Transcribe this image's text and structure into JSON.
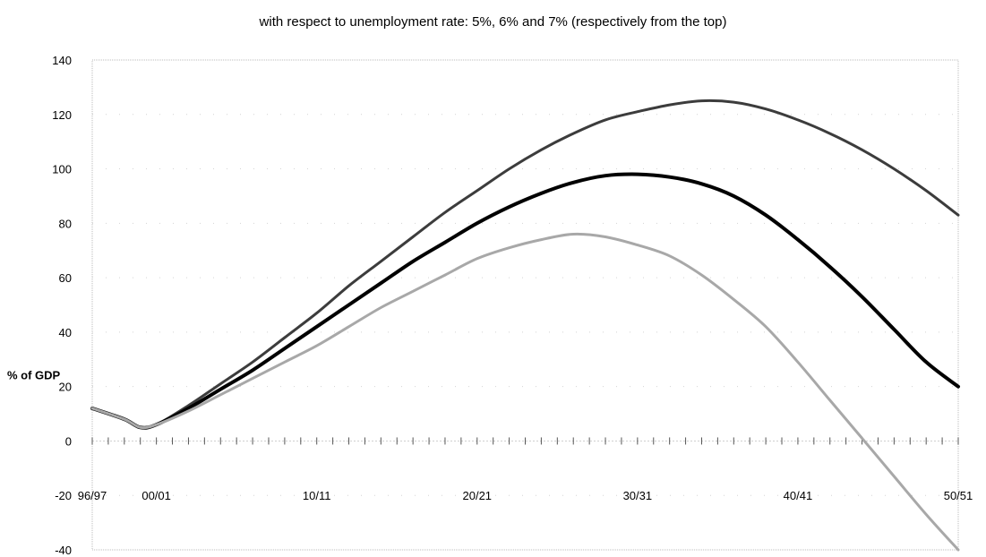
{
  "chart_data": {
    "type": "line",
    "title": "with respect to unemployment rate: 5%, 6% and 7% (respectively from the top)",
    "ylabel": "% of GDP",
    "xlabel": "",
    "ylim": [
      -40,
      140
    ],
    "yticks": [
      -40,
      -20,
      0,
      20,
      40,
      60,
      80,
      100,
      120,
      140
    ],
    "xticks": [
      "96/97",
      "00/01",
      "10/11",
      "20/21",
      "30/31",
      "40/41",
      "50/51"
    ],
    "xtick_years": [
      1996,
      2000,
      2010,
      2020,
      2030,
      2040,
      2050
    ],
    "x": [
      1996,
      1998,
      1999,
      2000,
      2002,
      2004,
      2006,
      2008,
      2010,
      2012,
      2014,
      2016,
      2018,
      2020,
      2022,
      2024,
      2026,
      2028,
      2030,
      2032,
      2034,
      2036,
      2038,
      2040,
      2042,
      2044,
      2046,
      2048,
      2050
    ],
    "series": [
      {
        "name": "5%",
        "color": "#3c3c3c",
        "width": 3,
        "values": [
          12,
          8,
          5,
          6,
          13,
          21,
          29,
          38,
          47,
          57,
          66,
          75,
          84,
          92,
          100,
          107,
          113,
          118,
          121,
          123.5,
          125,
          124.5,
          122,
          118,
          113,
          107,
          100,
          92,
          83
        ]
      },
      {
        "name": "6%",
        "color": "#000000",
        "width": 4,
        "values": [
          12,
          8,
          5,
          6,
          12,
          19,
          26,
          34,
          42,
          50,
          58,
          66,
          73,
          80,
          86,
          91,
          95,
          97.5,
          98,
          97,
          94.5,
          90,
          83,
          74,
          64,
          53,
          41,
          29,
          20
        ]
      },
      {
        "name": "7%",
        "color": "#a8a8a8",
        "width": 3,
        "values": [
          12,
          8,
          5,
          6,
          11,
          17,
          23,
          29,
          35,
          42,
          49,
          55,
          61,
          67,
          71,
          74,
          76,
          75,
          72,
          68,
          61,
          52,
          42,
          29,
          15,
          1,
          -13,
          -27,
          -40
        ]
      }
    ]
  }
}
